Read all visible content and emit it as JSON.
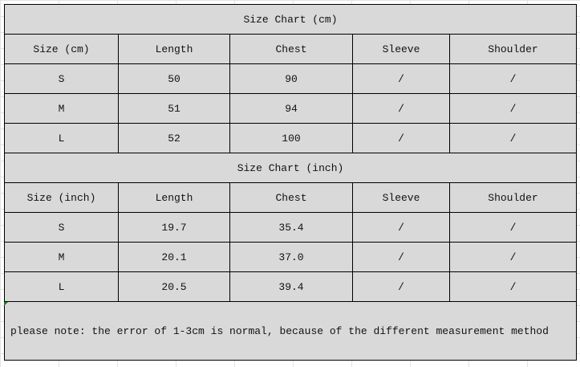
{
  "cm_table": {
    "title": "Size Chart (cm)",
    "headers": [
      "Size (cm)",
      "Length",
      "Chest",
      "Sleeve",
      "Shoulder"
    ],
    "rows": [
      [
        "S",
        "50",
        "90",
        "/",
        "/"
      ],
      [
        "M",
        "51",
        "94",
        "/",
        "/"
      ],
      [
        "L",
        "52",
        "100",
        "/",
        "/"
      ]
    ]
  },
  "inch_table": {
    "title": "Size Chart (inch)",
    "headers": [
      "Size (inch)",
      "Length",
      "Chest",
      "Sleeve",
      "Shoulder"
    ],
    "rows": [
      [
        "S",
        "19.7",
        "35.4",
        "/",
        "/"
      ],
      [
        "M",
        "20.1",
        "37.0",
        "/",
        "/"
      ],
      [
        "L",
        "20.5",
        "39.4",
        "/",
        "/"
      ]
    ]
  },
  "note": "please note: the error of 1-3cm is normal, because of the different measurement method",
  "colors": {
    "cell_bg": "#d9d9d9",
    "border": "#000000"
  }
}
